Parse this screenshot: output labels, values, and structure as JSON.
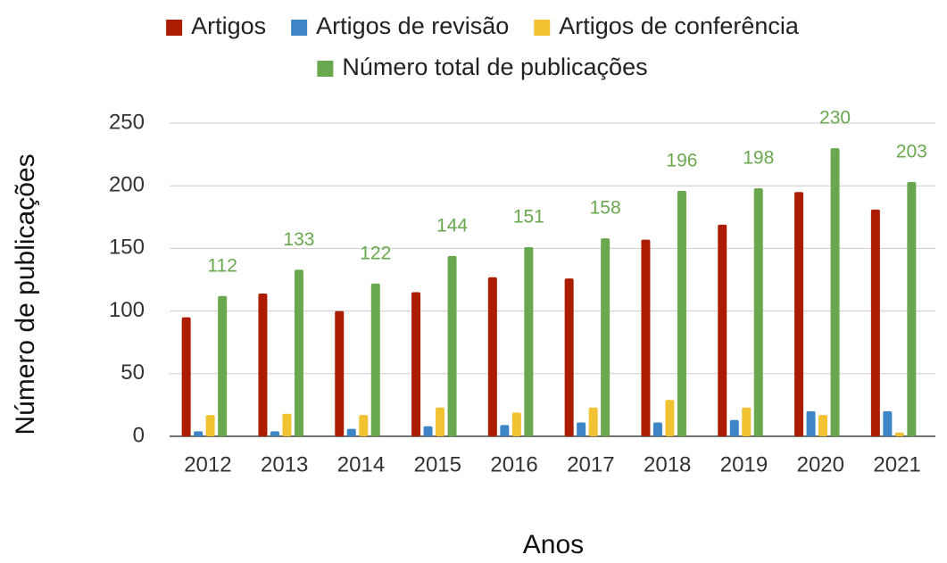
{
  "chart_data": {
    "type": "bar",
    "x_label": "Anos",
    "y_label": "Número de publicações",
    "categories": [
      "2012",
      "2013",
      "2014",
      "2015",
      "2016",
      "2017",
      "2018",
      "2019",
      "2020",
      "2021"
    ],
    "series": [
      {
        "name": "Artigos",
        "color": "#ac1d00",
        "values": [
          95,
          114,
          100,
          115,
          127,
          126,
          157,
          169,
          195,
          181
        ]
      },
      {
        "name": "Artigos de revisão",
        "color": "#3d85c6",
        "values": [
          4,
          4,
          6,
          8,
          9,
          11,
          11,
          13,
          20,
          20
        ]
      },
      {
        "name": "Artigos de conferência",
        "color": "#f1c232",
        "values": [
          17,
          18,
          17,
          23,
          19,
          23,
          29,
          23,
          17,
          3
        ]
      },
      {
        "name": "Número total de publicações",
        "color": "#6aa84f",
        "values": [
          112,
          133,
          122,
          144,
          151,
          158,
          196,
          198,
          230,
          203
        ],
        "data_labels": true
      }
    ],
    "ylim": [
      0,
      250
    ],
    "yticks": [
      0,
      50,
      100,
      150,
      200,
      250
    ],
    "grid": true,
    "legend": "top"
  }
}
